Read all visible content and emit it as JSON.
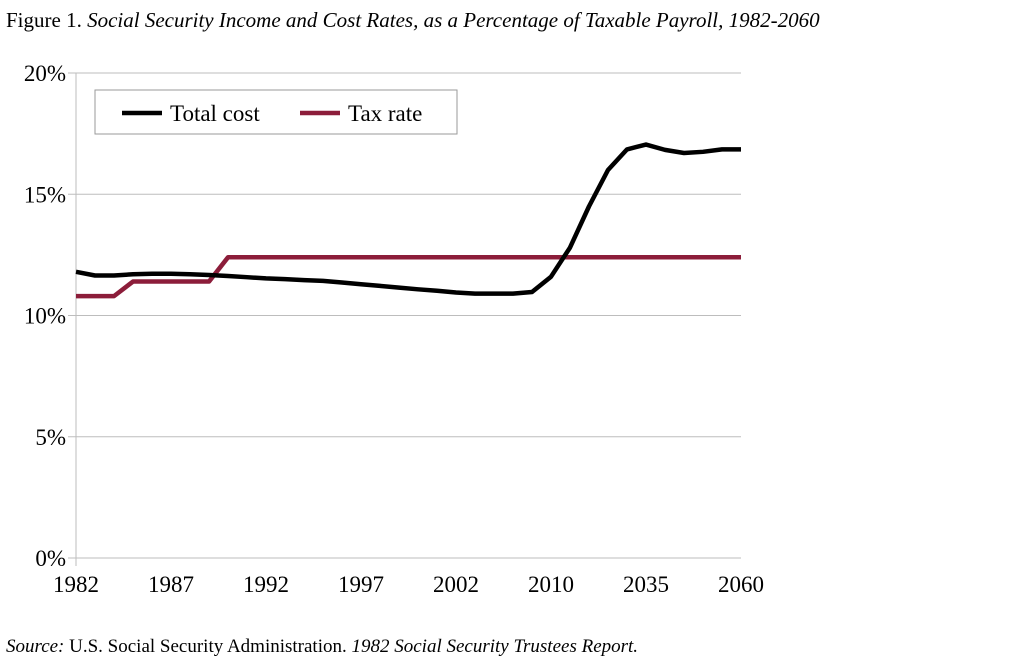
{
  "title": {
    "prefix": "Figure 1. ",
    "text": "Social Security Income and Cost Rates, as a Percentage of Taxable Payroll, 1982-2060"
  },
  "source": {
    "label": "Source:",
    "text": " U.S. Social Security Administration. ",
    "report": "1982 Social Security Trustees Report."
  },
  "chart_data": {
    "type": "line",
    "title": "Social Security Income and Cost Rates, as a Percentage of Taxable Payroll, 1982-2060",
    "x": [
      1982,
      1983,
      1984,
      1985,
      1986,
      1987,
      1988,
      1989,
      1990,
      1991,
      1992,
      1993,
      1994,
      1995,
      1996,
      1997,
      1998,
      1999,
      2000,
      2001,
      2002,
      2003,
      2004,
      2005,
      2006,
      2010,
      2015,
      2020,
      2025,
      2030,
      2035,
      2040,
      2045,
      2050,
      2055,
      2060
    ],
    "x_tick_labels": [
      "1982",
      "1987",
      "1992",
      "1997",
      "2002",
      "2010",
      "2035",
      "2060"
    ],
    "y_tick_labels": [
      "0%",
      "5%",
      "10%",
      "15%",
      "20%"
    ],
    "ylim": [
      0,
      20
    ],
    "grid": "horizontal",
    "legend_position": "top-left",
    "series": [
      {
        "name": "Total cost",
        "color": "#000000",
        "values": [
          11.8,
          11.65,
          11.65,
          11.7,
          11.72,
          11.72,
          11.7,
          11.67,
          11.63,
          11.58,
          11.53,
          11.5,
          11.46,
          11.43,
          11.36,
          11.29,
          11.22,
          11.15,
          11.08,
          11.02,
          10.95,
          10.9,
          10.9,
          10.9,
          10.97,
          11.6,
          12.8,
          14.5,
          16.0,
          16.85,
          17.05,
          16.83,
          16.7,
          16.75,
          16.85,
          16.85
        ]
      },
      {
        "name": "Tax rate",
        "color": "#8c1d3a",
        "values": [
          10.8,
          10.8,
          10.8,
          11.4,
          11.4,
          11.4,
          11.4,
          11.4,
          12.4,
          12.4,
          12.4,
          12.4,
          12.4,
          12.4,
          12.4,
          12.4,
          12.4,
          12.4,
          12.4,
          12.4,
          12.4,
          12.4,
          12.4,
          12.4,
          12.4,
          12.4,
          12.4,
          12.4,
          12.4,
          12.4,
          12.4,
          12.4,
          12.4,
          12.4,
          12.4,
          12.4
        ]
      }
    ]
  }
}
